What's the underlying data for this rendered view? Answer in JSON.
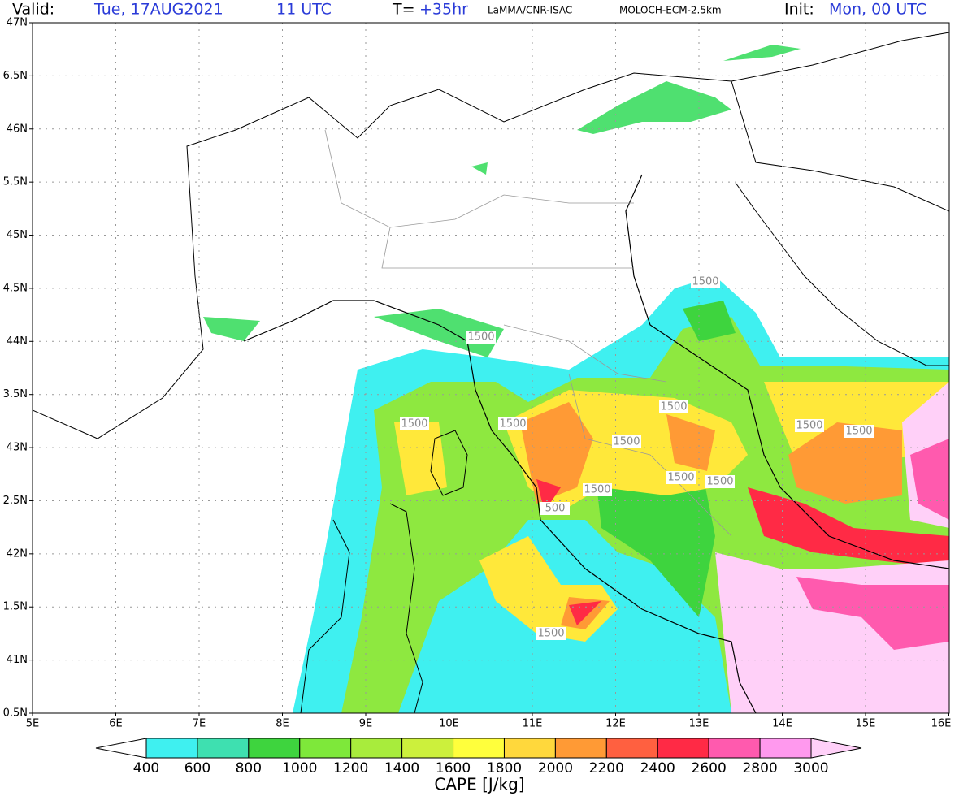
{
  "header": {
    "valid_label": "Valid:",
    "valid_date": "Tue, 17AUG2021",
    "valid_time": "11 UTC",
    "lead_label": "T=",
    "lead_time": "+35hr",
    "institution": "LaMMA/CNR-ISAC",
    "model": "MOLOCH-ECM-2.5km",
    "init_label": "Init:",
    "init_time": "Mon, 00 UTC"
  },
  "axes": {
    "lat_labels": [
      "47N",
      "6.5N",
      "46N",
      "5.5N",
      "45N",
      "4.5N",
      "44N",
      "3.5N",
      "43N",
      "2.5N",
      "42N",
      "1.5N",
      "41N",
      "0.5N"
    ],
    "lon_labels": [
      "5E",
      "6E",
      "7E",
      "8E",
      "9E",
      "10E",
      "11E",
      "12E",
      "13E",
      "14E",
      "15E",
      "16E"
    ]
  },
  "contour_labels": [
    "1500",
    "1500",
    "1500",
    "1500",
    "1500",
    "1500",
    "1500",
    "1500",
    "1500",
    "1500",
    "1500",
    "500",
    "1500"
  ],
  "colorbar": {
    "title": "CAPE [J/kg]",
    "levels": [
      400,
      600,
      800,
      1000,
      1200,
      1400,
      1600,
      1800,
      2000,
      2200,
      2400,
      2600,
      2800,
      3000
    ],
    "colors": [
      "#3ff0f0",
      "#3ee0b0",
      "#3ed43e",
      "#7ee83a",
      "#a8ec3c",
      "#ccf03c",
      "#ffff3c",
      "#ffd83c",
      "#ff9a35",
      "#ff6040",
      "#ff2a45",
      "#ff5aae",
      "#ff99ee"
    ],
    "under_color": "#ffffff",
    "over_color": "#ffd0f8"
  }
}
